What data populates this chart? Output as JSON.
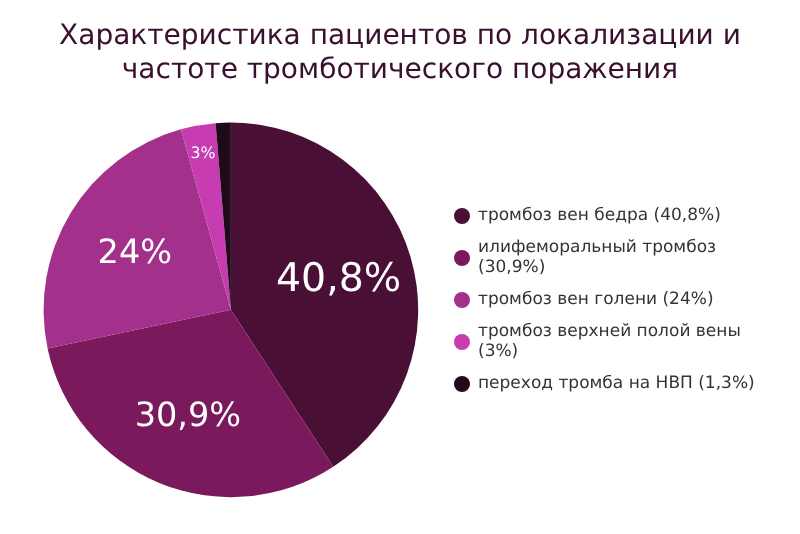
{
  "chart_data": {
    "type": "pie",
    "title": "Характеристика пациентов  по локализации и частоте тромботического поражения",
    "categories": [
      "тромбоз вен бедра (40,8%)",
      "илифеморальный тромбоз (30,9%)",
      "тромбоз вен голени (24%)",
      "тромбоз верхней полой вены (3%)",
      "переход тромба на НВП (1,3%)"
    ],
    "values": [
      40.8,
      30.9,
      24,
      3,
      1.3
    ],
    "colors": [
      "#4a0f35",
      "#7a1a5c",
      "#a3308a",
      "#c73cb0",
      "#1e0a1a"
    ],
    "value_labels": [
      "40,8%",
      "30,9%",
      "24%",
      "3%",
      null
    ],
    "legend": "right"
  }
}
